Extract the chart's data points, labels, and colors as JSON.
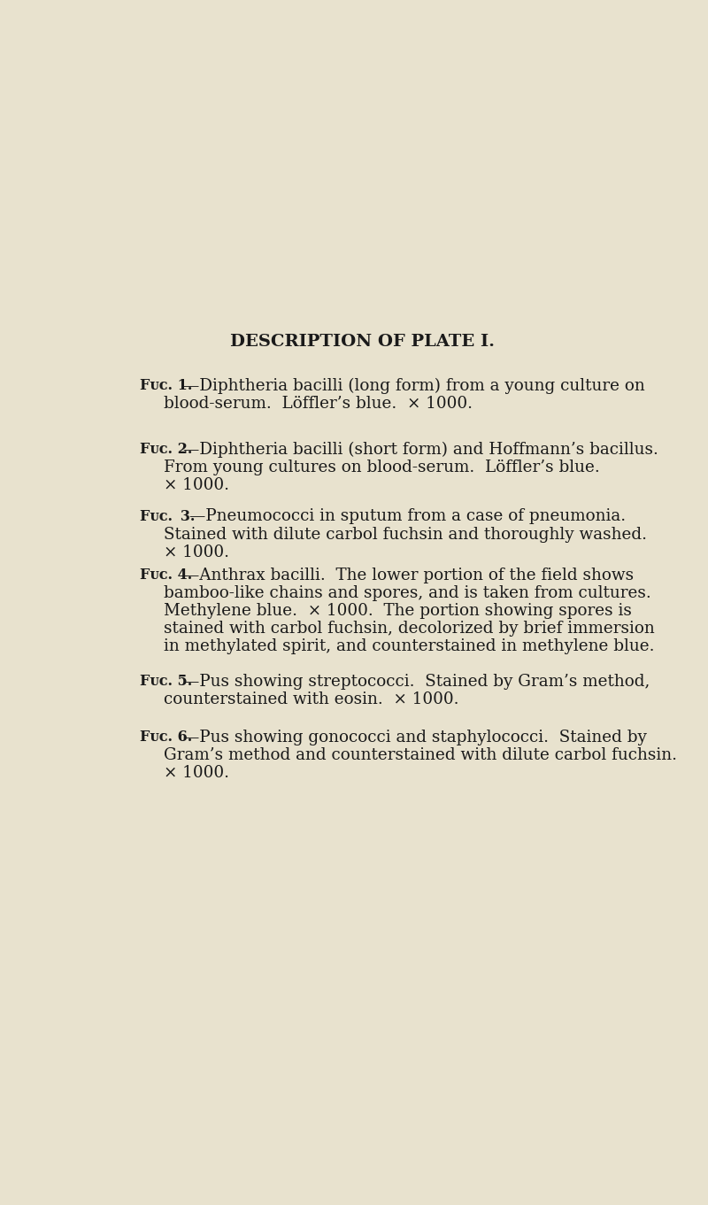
{
  "background_color": "#e8e2ce",
  "title": "DESCRIPTION OF PLATE I.",
  "text_color": "#1a1a1a",
  "page_width": 8.0,
  "page_height": 13.61,
  "title_fontsize": 14.0,
  "body_fontsize": 13.2,
  "label_fontsize": 11.5,
  "fig_lines": [
    {
      "xpx": 75,
      "ypx": 342,
      "text": "Fᴜᴄ. 1.—Diphtheria bacilli (long form) from a young culture on",
      "is_first": true
    },
    {
      "xpx": 110,
      "ypx": 368,
      "text": "blood-serum.  Löffler’s blue.  × 1000.",
      "is_first": false
    },
    {
      "xpx": 75,
      "ypx": 436,
      "text": "Fᴜᴄ. 2.—Diphtheria bacilli (short form) and Hoffmann’s bacillus.",
      "is_first": true
    },
    {
      "xpx": 110,
      "ypx": 462,
      "text": "From young cultures on blood-serum.  Löffler’s blue.",
      "is_first": false
    },
    {
      "xpx": 110,
      "ypx": 488,
      "text": "× 1000.",
      "is_first": false
    },
    {
      "xpx": 75,
      "ypx": 534,
      "text": "Fᴜᴄ.  3.—Pneumococci in sputum from a case of pneumonia.",
      "is_first": true
    },
    {
      "xpx": 110,
      "ypx": 560,
      "text": "Stained with dilute carbol fuchsin and thoroughly washed.",
      "is_first": false
    },
    {
      "xpx": 110,
      "ypx": 586,
      "text": "× 1000.",
      "is_first": false
    },
    {
      "xpx": 75,
      "ypx": 620,
      "text": "Fᴜᴄ. 4.—Anthrax bacilli.  The lower portion of the field shows",
      "is_first": true
    },
    {
      "xpx": 110,
      "ypx": 646,
      "text": "bamboo-like chains and spores, and is taken from cultures.",
      "is_first": false
    },
    {
      "xpx": 110,
      "ypx": 672,
      "text": "Methylene blue.  × 1000.  The portion showing spores is",
      "is_first": false
    },
    {
      "xpx": 110,
      "ypx": 698,
      "text": "stained with carbol fuchsin, decolorized by brief immersion",
      "is_first": false
    },
    {
      "xpx": 110,
      "ypx": 724,
      "text": "in methylated spirit, and counterstained in methylene blue.",
      "is_first": false
    },
    {
      "xpx": 75,
      "ypx": 776,
      "text": "Fᴜᴄ. 5.—Pus showing streptococci.  Stained by Gram’s method,",
      "is_first": true
    },
    {
      "xpx": 110,
      "ypx": 802,
      "text": "counterstained with eosin.  × 1000.",
      "is_first": false
    },
    {
      "xpx": 75,
      "ypx": 858,
      "text": "Fᴜᴄ. 6.—Pus showing gonococci and staphylococci.  Stained by",
      "is_first": true
    },
    {
      "xpx": 110,
      "ypx": 884,
      "text": "Gram’s method and counterstained with dilute carbol fuchsin.",
      "is_first": false
    },
    {
      "xpx": 110,
      "ypx": 910,
      "text": "× 1000.",
      "is_first": false
    }
  ]
}
